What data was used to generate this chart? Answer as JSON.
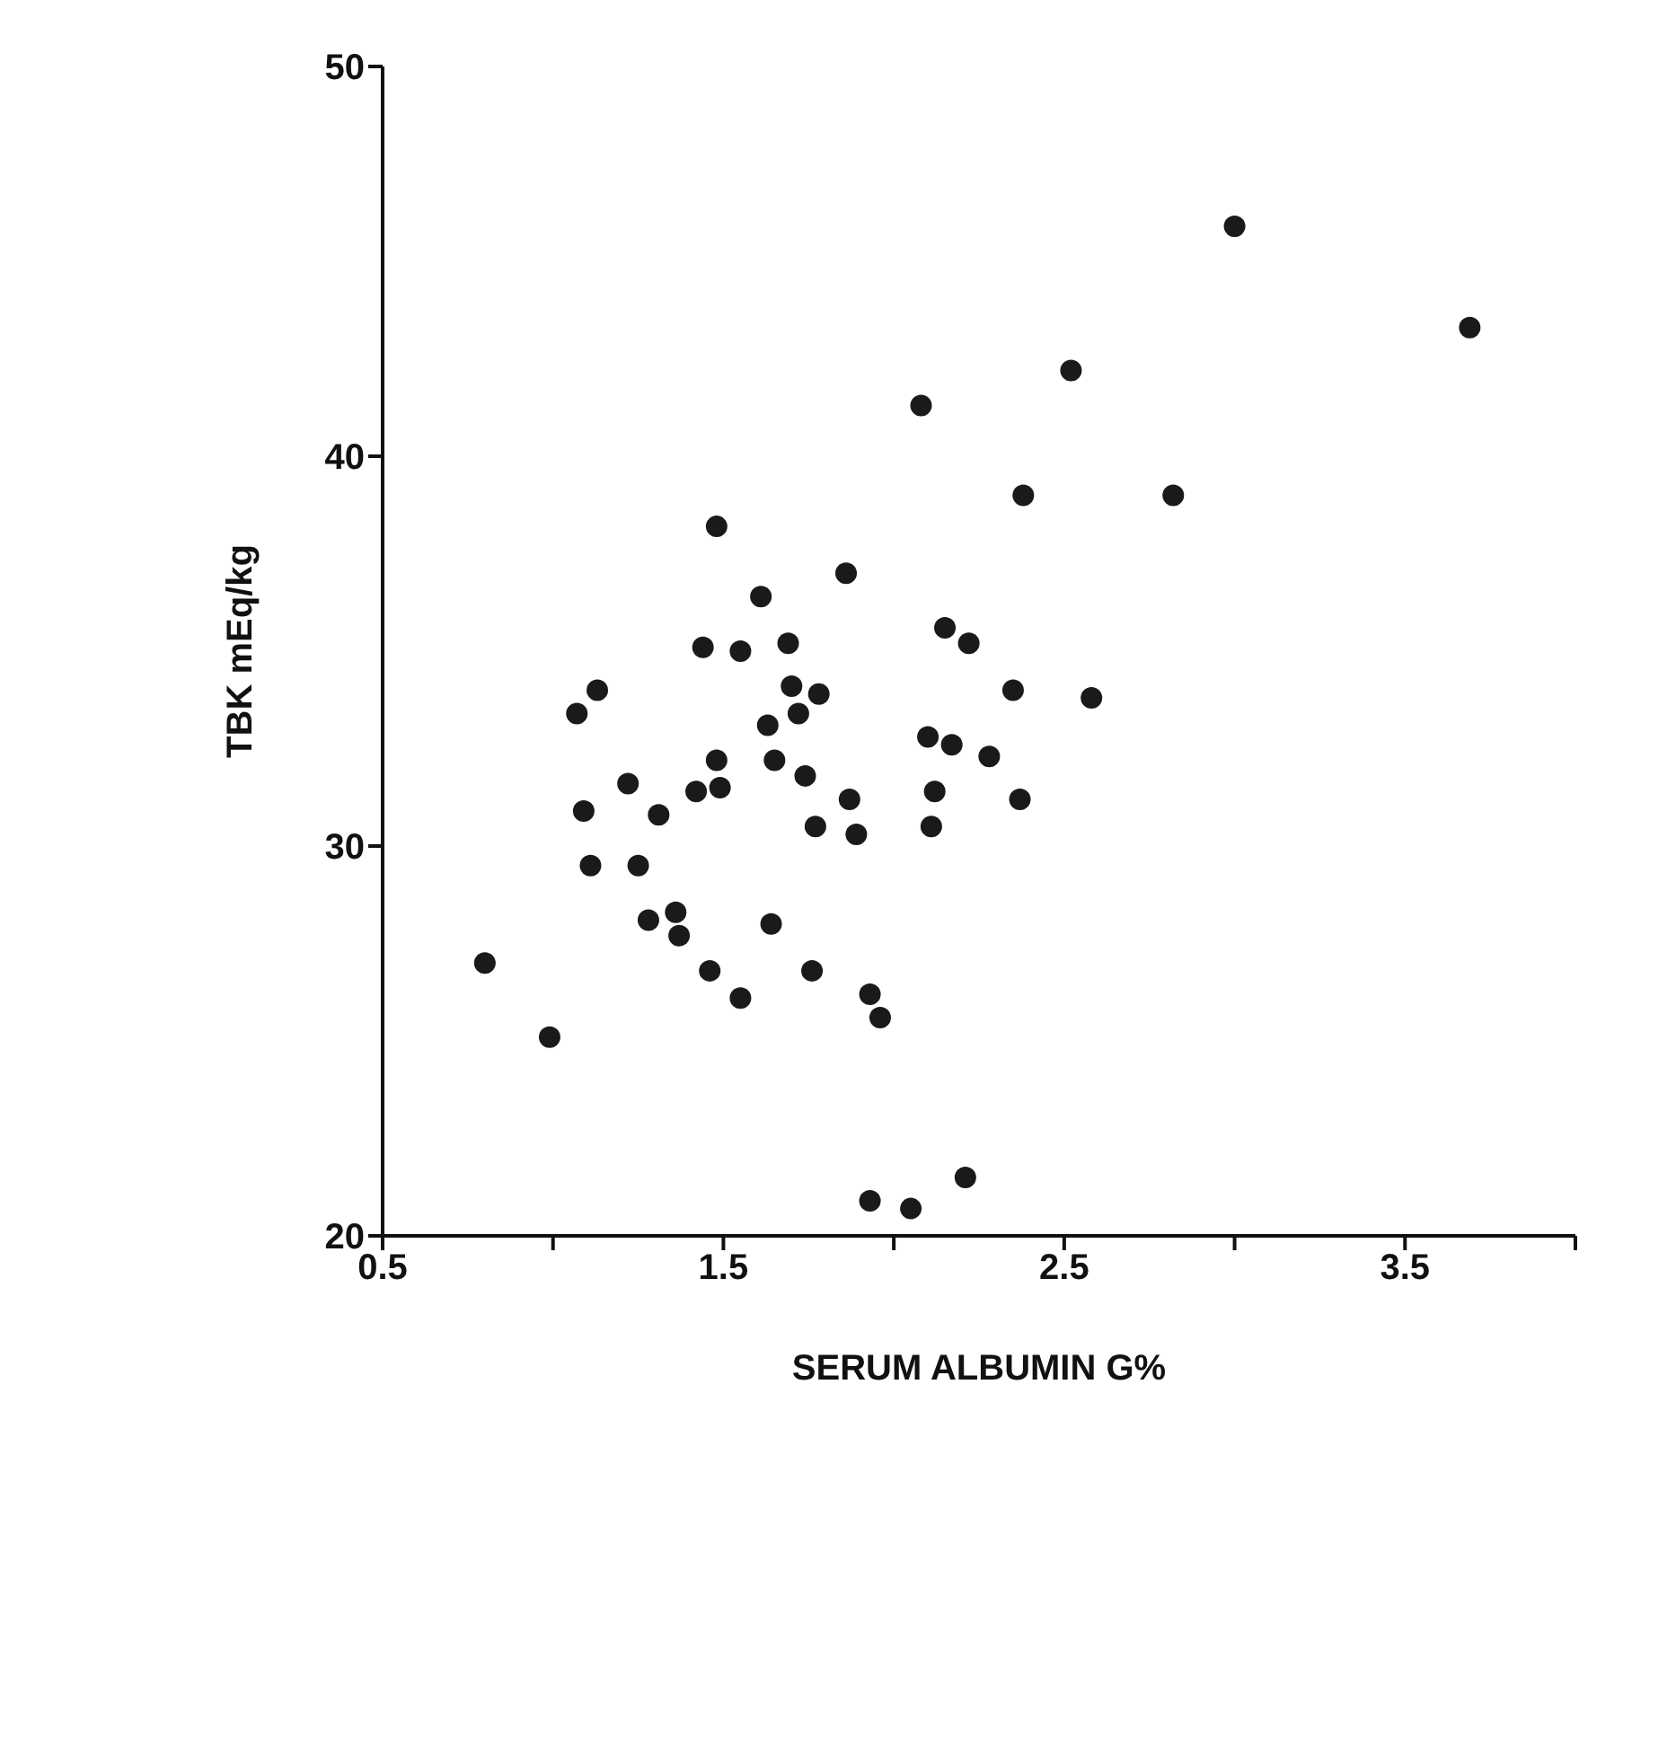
{
  "chart_data": {
    "type": "scatter",
    "xlabel": "SERUM ALBUMIN G%",
    "ylabel": "TBK mEq/kg",
    "xlim": [
      0.5,
      4.0
    ],
    "ylim": [
      20,
      50
    ],
    "xticks": [
      0.5,
      {
        "value": 1.0,
        "label": null
      },
      1.5,
      {
        "value": 2.0,
        "label": null
      },
      2.5,
      {
        "value": 3.0,
        "label": null
      },
      3.5,
      {
        "value": 4.0,
        "label": null
      }
    ],
    "yticks": [
      20,
      30,
      40,
      50
    ],
    "grid": false,
    "marker": "circle",
    "series": [
      {
        "color": "#1a1a1a",
        "x": [
          0.8,
          0.99,
          1.07,
          1.13,
          1.09,
          1.11,
          1.22,
          1.31,
          1.25,
          1.28,
          1.36,
          1.37,
          1.46,
          1.55,
          1.44,
          1.55,
          1.61,
          1.42,
          1.48,
          1.49,
          1.63,
          1.65,
          1.69,
          1.7,
          1.72,
          1.78,
          1.74,
          1.77,
          1.64,
          1.76,
          1.86,
          1.87,
          1.89,
          1.93,
          1.96,
          1.93,
          2.05,
          2.21,
          2.15,
          2.22,
          2.1,
          2.17,
          2.12,
          2.11,
          2.28,
          2.35,
          2.58,
          2.37,
          2.08,
          1.48,
          3.0,
          3.69,
          2.52,
          2.38,
          2.82
        ],
        "values": [
          27.0,
          25.1,
          33.4,
          34.0,
          30.9,
          29.5,
          31.6,
          30.8,
          29.5,
          28.1,
          28.3,
          27.7,
          26.8,
          26.1,
          35.1,
          35.0,
          36.4,
          31.4,
          32.2,
          31.5,
          33.1,
          32.2,
          35.2,
          34.1,
          33.4,
          33.9,
          31.8,
          30.5,
          28.0,
          26.8,
          37.0,
          31.2,
          30.3,
          26.2,
          25.6,
          20.9,
          20.7,
          21.5,
          35.6,
          35.2,
          32.8,
          32.6,
          31.4,
          30.5,
          32.3,
          34.0,
          33.8,
          31.2,
          41.3,
          38.2,
          45.9,
          43.3,
          42.2,
          39.0,
          39.0
        ]
      }
    ]
  }
}
